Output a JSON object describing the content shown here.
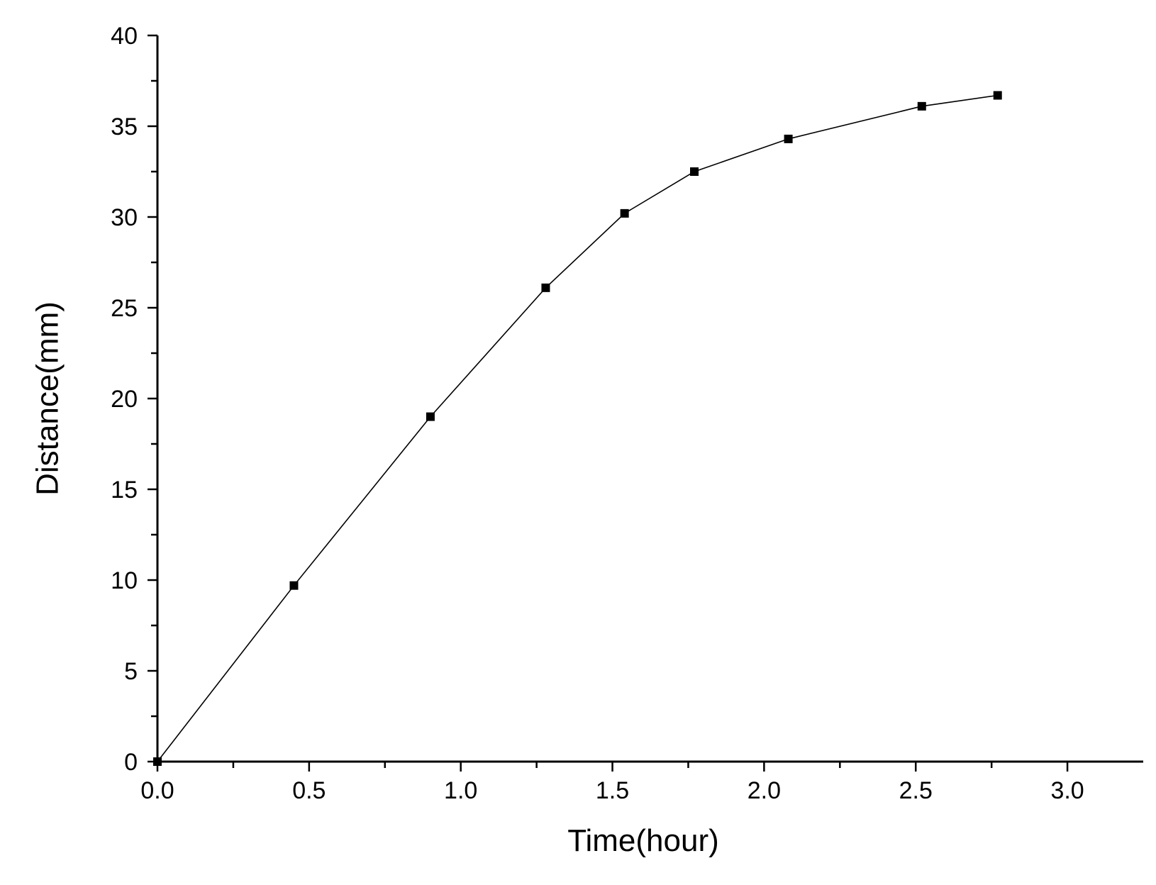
{
  "chart_data": {
    "type": "line",
    "title": "",
    "xlabel": "Time(hour)",
    "ylabel": "Distance(mm)",
    "xlim": [
      0,
      3.25
    ],
    "ylim": [
      0,
      40
    ],
    "x_ticks": [
      "0.0",
      "0.5",
      "1.0",
      "1.5",
      "2.0",
      "2.5",
      "3.0"
    ],
    "y_ticks": [
      "0",
      "5",
      "10",
      "15",
      "20",
      "25",
      "30",
      "35",
      "40"
    ],
    "grid": false,
    "legend": "none",
    "line_color": "#000000",
    "marker": "square",
    "series": [
      {
        "x": [
          0.0,
          0.45,
          0.9,
          1.28,
          1.54,
          1.77,
          2.08,
          2.52,
          2.77
        ],
        "y": [
          0.0,
          9.7,
          19.0,
          26.1,
          30.2,
          32.5,
          34.3,
          36.1,
          36.7
        ]
      }
    ]
  }
}
